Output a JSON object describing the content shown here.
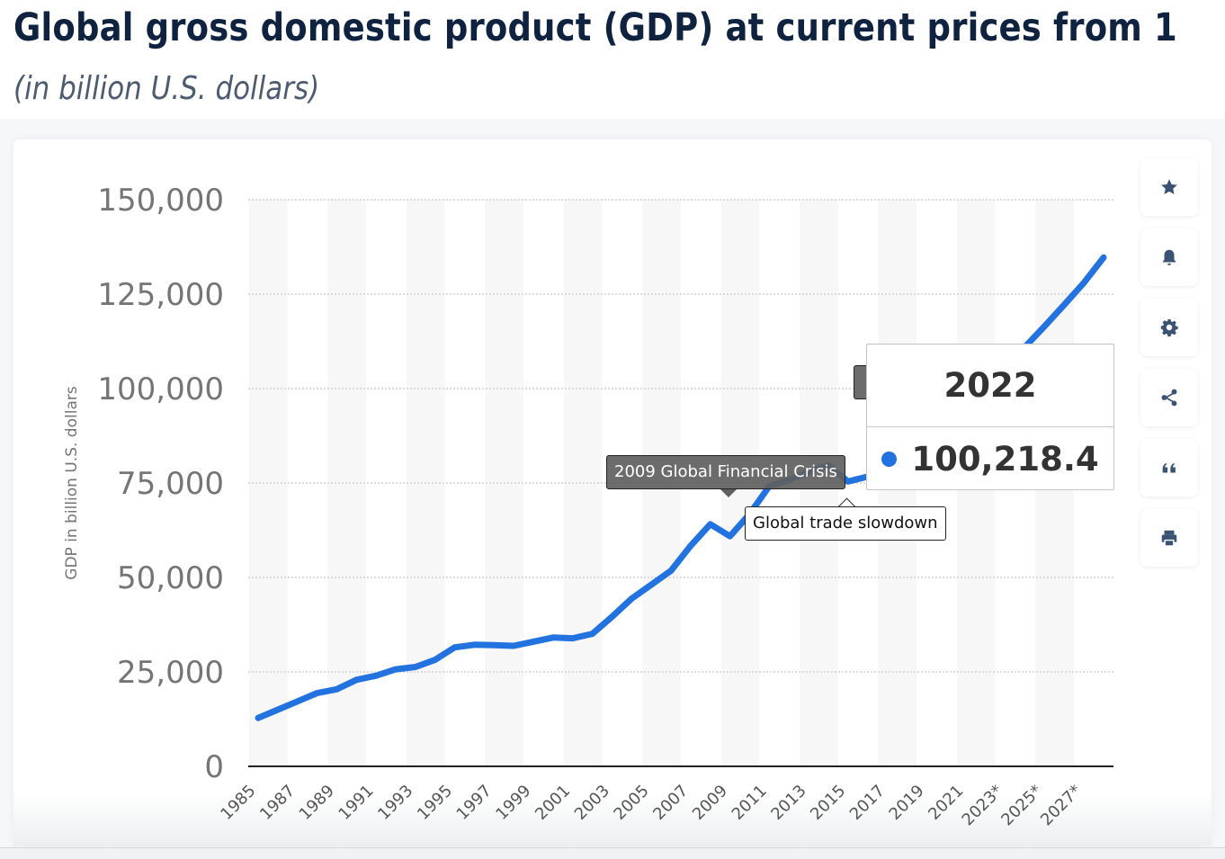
{
  "header": {
    "title": "Global gross domestic product (GDP) at current prices from 1",
    "subtitle": "(in billion U.S. dollars)"
  },
  "chart_data": {
    "type": "line",
    "title": "Global gross domestic product (GDP) at current prices from 1",
    "subtitle": "(in billion U.S. dollars)",
    "xlabel": "",
    "ylabel": "GDP in billion U.S. dollars",
    "ylim": [
      0,
      150000
    ],
    "y_ticks": [
      0,
      25000,
      50000,
      75000,
      100000,
      125000,
      150000
    ],
    "y_tick_labels": [
      "0",
      "25,000",
      "50,000",
      "75,000",
      "100,000",
      "125,000",
      "150,000"
    ],
    "x_range": [
      1985,
      2028
    ],
    "x_tick_labels": [
      "1985",
      "1987",
      "1989",
      "1991",
      "1993",
      "1995",
      "1997",
      "1999",
      "2001",
      "2003",
      "2005",
      "2007",
      "2009",
      "2011",
      "2013",
      "2015",
      "2017",
      "2019",
      "2021",
      "2023*",
      "2025*",
      "2027*"
    ],
    "grid": "horizontal-dotted",
    "legend": "none",
    "series": [
      {
        "name": "GDP",
        "color": "#2272e0",
        "x": [
          1985,
          1986,
          1987,
          1988,
          1989,
          1990,
          1991,
          1992,
          1993,
          1994,
          1995,
          1996,
          1997,
          1998,
          1999,
          2000,
          2001,
          2002,
          2003,
          2004,
          2005,
          2006,
          2007,
          2008,
          2009,
          2010,
          2011,
          2012,
          2013,
          2014,
          2015,
          2016,
          2017,
          2018,
          2019,
          2020,
          2021,
          2022,
          2023,
          2024,
          2025,
          2026,
          2027,
          2028
        ],
        "values": [
          12800,
          15000,
          17200,
          19400,
          20400,
          22900,
          24000,
          25700,
          26300,
          28200,
          31500,
          32200,
          32100,
          31900,
          33000,
          34100,
          33900,
          35100,
          39600,
          44400,
          48100,
          51800,
          58400,
          64100,
          60900,
          66800,
          74200,
          75800,
          77900,
          79700,
          75400,
          76700,
          81600,
          86700,
          88200,
          85800,
          97100,
          100218.4,
          106000,
          111000,
          116500,
          122200,
          128000,
          134700
        ]
      }
    ],
    "annotations": [
      {
        "label": "2009 Global Financial Crisis",
        "year": 2009,
        "style": "dark"
      },
      {
        "label": "Global trade slowdown",
        "year": 2015,
        "style": "light"
      }
    ],
    "tooltip": {
      "year": "2022",
      "value": "100,218.4"
    }
  },
  "toolbar": {
    "buttons": [
      {
        "name": "favorite",
        "icon": "star-icon"
      },
      {
        "name": "notification",
        "icon": "bell-icon"
      },
      {
        "name": "settings",
        "icon": "gear-icon"
      },
      {
        "name": "share",
        "icon": "share-icon"
      },
      {
        "name": "cite",
        "icon": "quote-icon"
      },
      {
        "name": "print",
        "icon": "printer-icon"
      }
    ]
  },
  "colors": {
    "line": "#2272e0",
    "title": "#0f2341",
    "subtitle": "#4d5b70",
    "icon": "#3a5374"
  }
}
